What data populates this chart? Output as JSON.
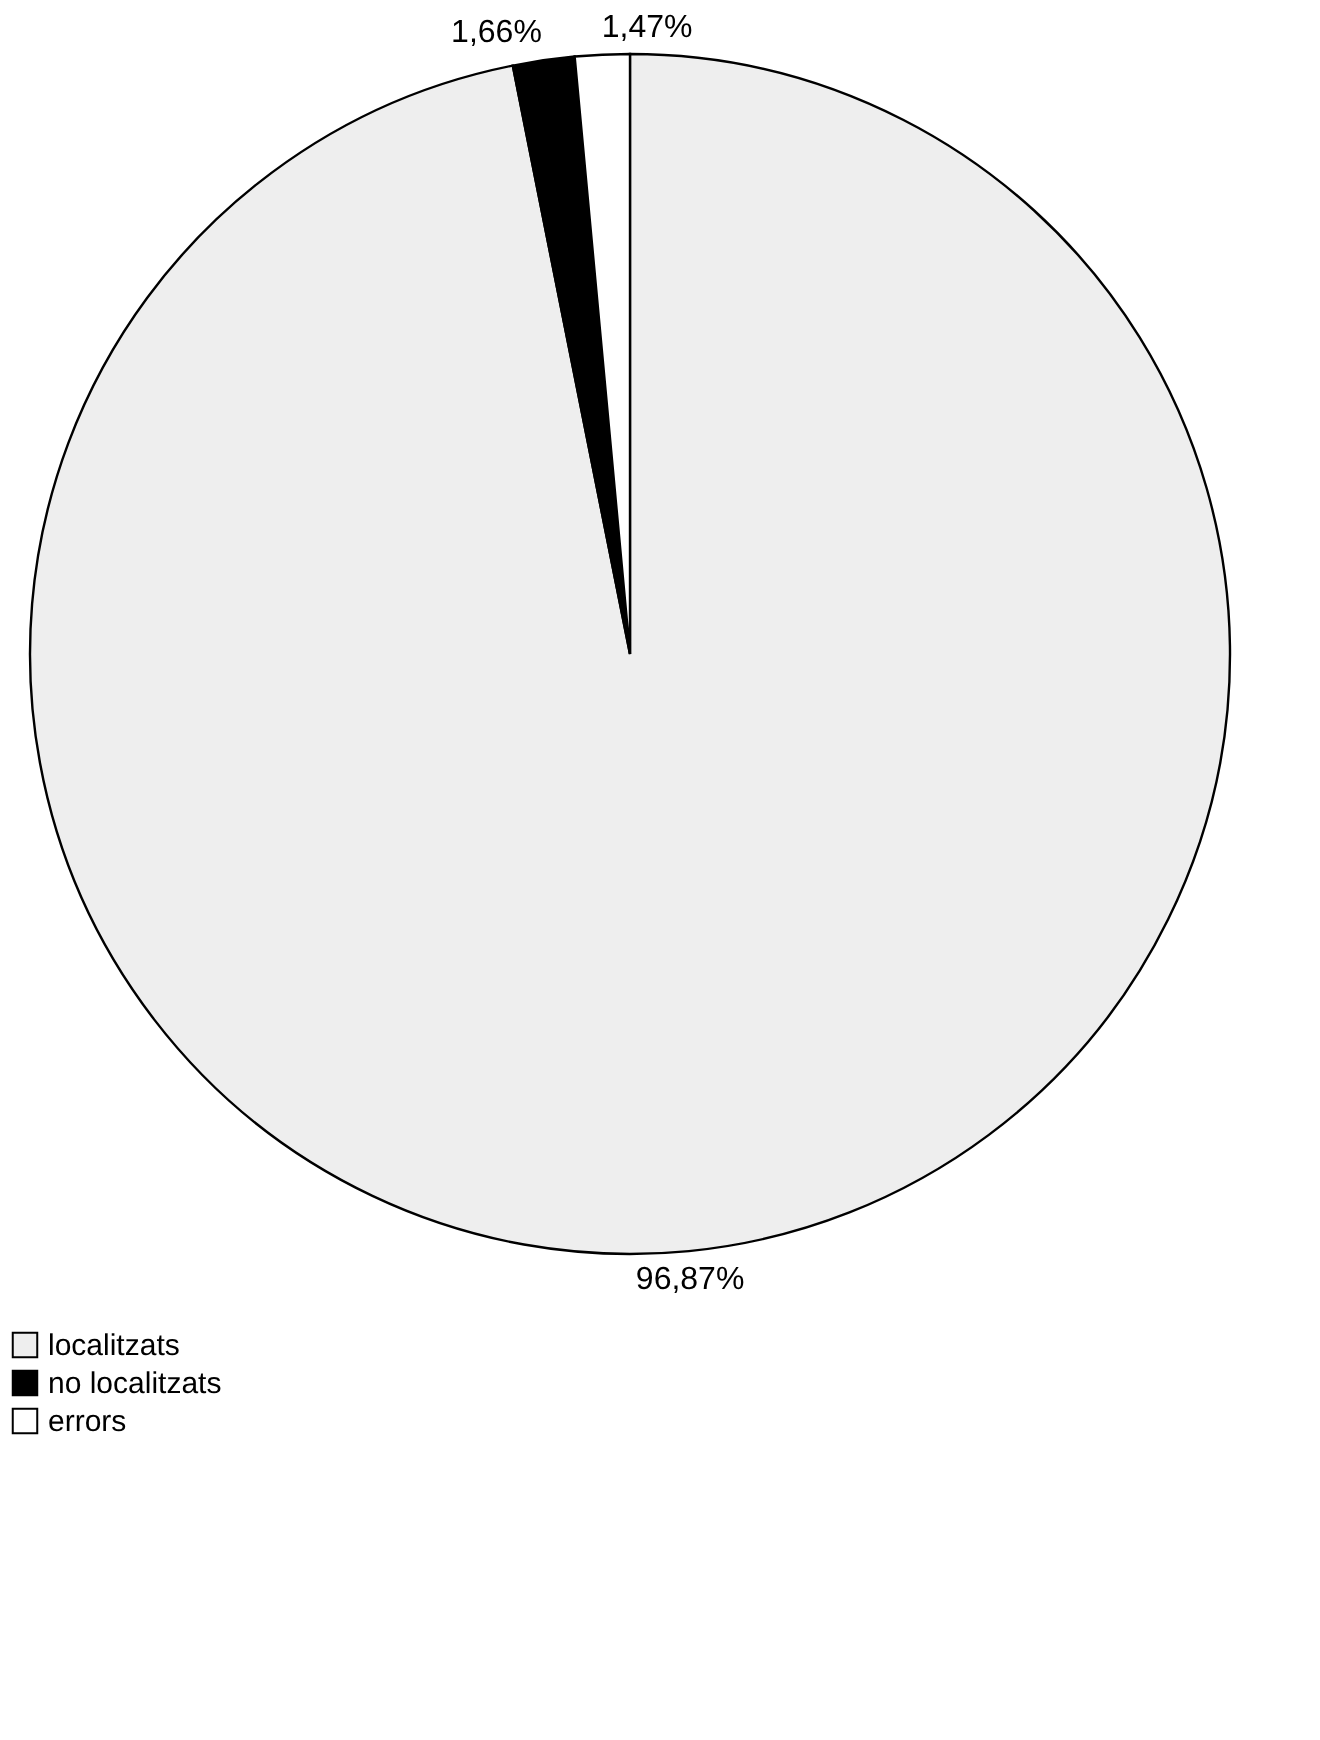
{
  "chart_data": {
    "type": "pie",
    "categories": [
      "localitzats",
      "no localitzats",
      "errors"
    ],
    "values": [
      96.87,
      1.66,
      1.47
    ],
    "value_labels": [
      "96,87%",
      "1,66%",
      "1,47%"
    ],
    "colors": [
      "#eeeeee",
      "#000000",
      "#ffffff"
    ],
    "legend": "bottom"
  }
}
